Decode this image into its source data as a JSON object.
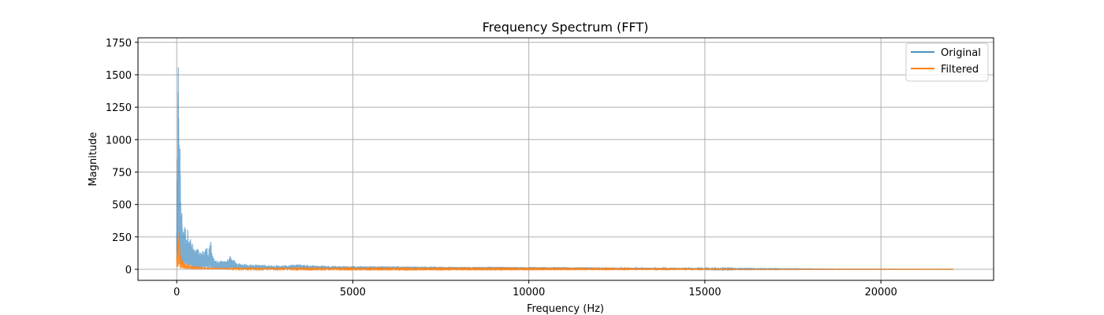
{
  "chart_data": {
    "type": "line",
    "title": "Frequency Spectrum (FFT)",
    "xlabel": "Frequency (Hz)",
    "ylabel": "Magnitude",
    "xlim": [
      -1100,
      23200
    ],
    "ylim": [
      -85,
      1785
    ],
    "xticks": [
      0,
      5000,
      10000,
      15000,
      20000
    ],
    "yticks": [
      0,
      250,
      500,
      750,
      1000,
      1250,
      1500,
      1750
    ],
    "grid": true,
    "legend_position": "top-right",
    "series": [
      {
        "name": "Original",
        "color": "#1f77b4",
        "opacity": 0.6,
        "x": [
          0,
          20,
          40,
          60,
          80,
          100,
          130,
          160,
          200,
          250,
          300,
          350,
          400,
          450,
          500,
          550,
          600,
          650,
          700,
          750,
          800,
          850,
          900,
          950,
          1000,
          1100,
          1200,
          1300,
          1400,
          1500,
          1700,
          2000,
          2500,
          3000,
          3500,
          4000,
          5000,
          6000,
          7000,
          8000,
          9000,
          10000,
          11000,
          12000,
          13000,
          14000,
          15000,
          16000,
          17000,
          18000,
          19000,
          20000,
          21000,
          22050
        ],
        "y": [
          420,
          900,
          1700,
          1650,
          1240,
          800,
          500,
          420,
          360,
          330,
          300,
          340,
          230,
          200,
          170,
          150,
          170,
          130,
          140,
          150,
          170,
          180,
          140,
          260,
          120,
          80,
          60,
          70,
          60,
          110,
          50,
          40,
          35,
          30,
          40,
          30,
          25,
          25,
          22,
          20,
          20,
          18,
          18,
          15,
          13,
          12,
          10,
          5,
          4,
          3,
          2,
          2,
          1,
          1
        ]
      },
      {
        "name": "Filtered",
        "color": "#ff7f0e",
        "opacity": 0.85,
        "x": [
          0,
          20,
          40,
          60,
          80,
          100,
          150,
          200,
          300,
          500,
          800,
          1000,
          1500,
          2000,
          3000,
          5000,
          8000,
          10000,
          12000,
          14000,
          15800,
          16000,
          18000,
          20000,
          22050
        ],
        "y": [
          100,
          280,
          390,
          370,
          200,
          120,
          80,
          60,
          40,
          25,
          18,
          15,
          12,
          10,
          9,
          8,
          7,
          6,
          5,
          4,
          3,
          1,
          1,
          1,
          1
        ]
      }
    ]
  }
}
